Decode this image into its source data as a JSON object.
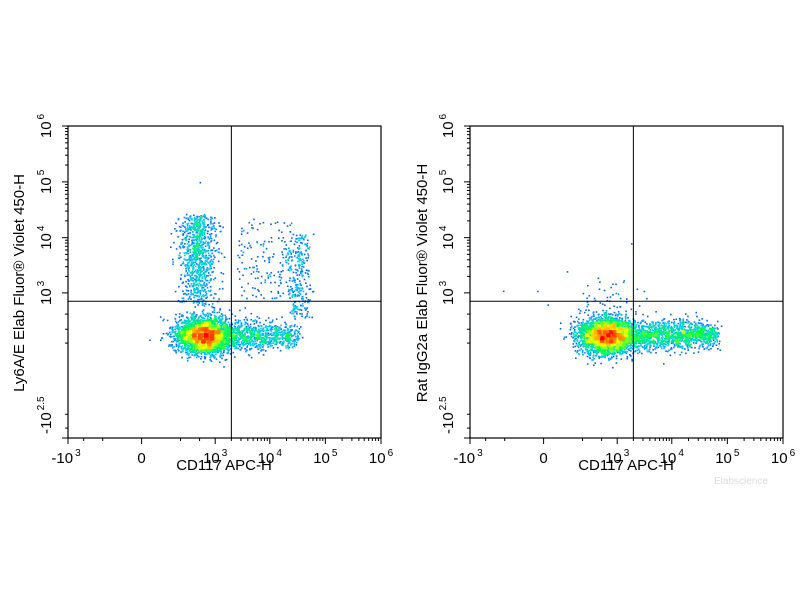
{
  "watermark": "Elabscience",
  "chart_data": [
    {
      "type": "scatter",
      "subtype": "flow-cytometry-density-dot-plot",
      "xlabel": "CD117 APC-H",
      "ylabel": "Ly6A/E Elab Fluor® Violet 450-H",
      "x_scale": "biexponential",
      "y_scale": "biexponential",
      "x_ticks": [
        {
          "base": "-10",
          "exp": "3",
          "value": -1000
        },
        {
          "base": "0",
          "exp": "",
          "value": 0
        },
        {
          "base": "10",
          "exp": "3",
          "value": 1000
        },
        {
          "base": "10",
          "exp": "4",
          "value": 10000
        },
        {
          "base": "10",
          "exp": "5",
          "value": 100000
        },
        {
          "base": "10",
          "exp": "6",
          "value": 1000000
        }
      ],
      "y_ticks": [
        {
          "base": "-10",
          "exp": "2.5",
          "value": -316
        },
        {
          "base": "10",
          "exp": "3",
          "value": 1000
        },
        {
          "base": "10",
          "exp": "4",
          "value": 10000
        },
        {
          "base": "10",
          "exp": "5",
          "value": 100000
        },
        {
          "base": "10",
          "exp": "6",
          "value": 1000000
        }
      ],
      "quadrant_gate": {
        "x": 2000,
        "y": 700
      },
      "populations": [
        {
          "name": "main",
          "x_center": 550,
          "y_center": 150,
          "density": "high"
        },
        {
          "name": "CD117-low tail",
          "x_range": [
            1500,
            30000
          ],
          "y_center": 150,
          "density": "medium"
        },
        {
          "name": "Ly6A/E+",
          "x_range": [
            -200,
            2500
          ],
          "y_range": [
            1000,
            30000
          ],
          "density": "low"
        },
        {
          "name": "CD117+ Ly6A/E+",
          "x_center": 35000,
          "y_range": [
            1000,
            10000
          ],
          "density": "low"
        }
      ],
      "colormap": [
        "#0000ff",
        "#00c8ff",
        "#00ff40",
        "#ffff00",
        "#ff8000",
        "#ff0000"
      ]
    },
    {
      "type": "scatter",
      "subtype": "flow-cytometry-density-dot-plot",
      "xlabel": "CD117 APC-H",
      "ylabel": "Rat IgG2a Elab Fluor® Violet 450-H",
      "x_scale": "biexponential",
      "y_scale": "biexponential",
      "x_ticks": [
        {
          "base": "-10",
          "exp": "3",
          "value": -1000
        },
        {
          "base": "0",
          "exp": "",
          "value": 0
        },
        {
          "base": "10",
          "exp": "3",
          "value": 1000
        },
        {
          "base": "10",
          "exp": "4",
          "value": 10000
        },
        {
          "base": "10",
          "exp": "5",
          "value": 100000
        },
        {
          "base": "10",
          "exp": "6",
          "value": 1000000
        }
      ],
      "y_ticks": [
        {
          "base": "-10",
          "exp": "2.5",
          "value": -316
        },
        {
          "base": "10",
          "exp": "3",
          "value": 1000
        },
        {
          "base": "10",
          "exp": "4",
          "value": 10000
        },
        {
          "base": "10",
          "exp": "5",
          "value": 100000
        },
        {
          "base": "10",
          "exp": "6",
          "value": 1000000
        }
      ],
      "quadrant_gate": {
        "x": 2000,
        "y": 700
      },
      "populations": [
        {
          "name": "main",
          "x_center": 550,
          "y_center": 150,
          "density": "high"
        },
        {
          "name": "CD117-low tail",
          "x_range": [
            1500,
            60000
          ],
          "y_center": 150,
          "density": "medium"
        }
      ],
      "colormap": [
        "#0000ff",
        "#00c8ff",
        "#00ff40",
        "#ffff00",
        "#ff8000",
        "#ff0000"
      ]
    }
  ]
}
